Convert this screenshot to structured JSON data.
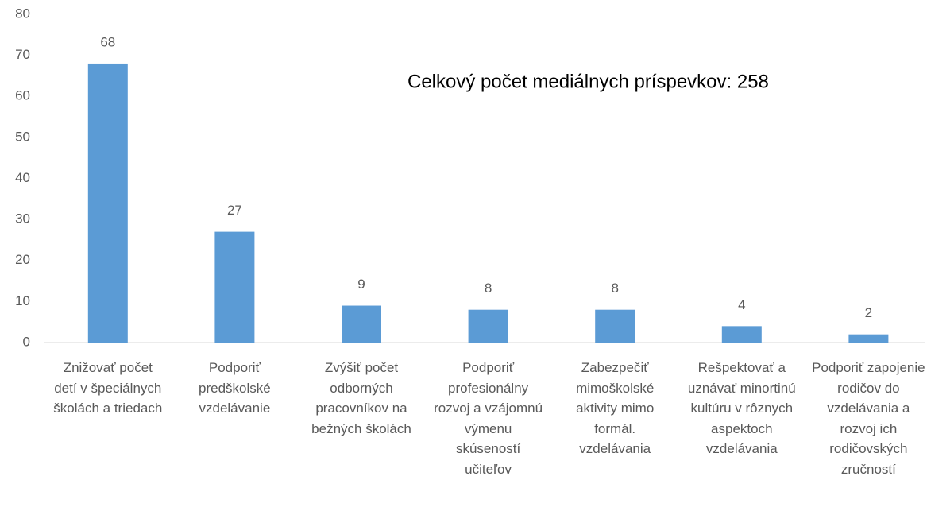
{
  "chart_data": {
    "type": "bar",
    "annotation": "Celkový počet mediálnych príspevkov: 258",
    "categories": [
      "Znižovať počet detí v špeciálnych školách a triedach",
      "Podporiť predškolské vzdelávanie",
      "Zvýšiť počet odborných pracovníkov na bežných školách",
      "Podporiť profesionálny rozvoj a vzájomnú výmenu skúseností učiteľov",
      "Zabezpečiť mimoškolské aktivity mimo formál. vzdelávania",
      "Rešpektovať a uznávať minortinú kultúru v rôznych aspektoch vzdelávania",
      "Podporiť zapojenie rodičov do vzdelávania a rozvoj ich rodičovských zručností"
    ],
    "values": [
      68,
      27,
      9,
      8,
      8,
      4,
      2
    ],
    "color": "#5b9bd5",
    "ylim": [
      0,
      80
    ],
    "yticks": [
      0,
      10,
      20,
      30,
      40,
      50,
      60,
      70,
      80
    ],
    "grid": false
  }
}
